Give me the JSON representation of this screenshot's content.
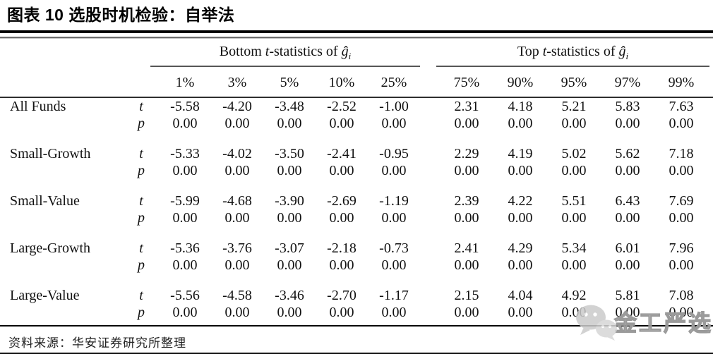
{
  "header": {
    "title_prefix": "图表 ",
    "title_number": "10",
    "title_suffix": " 选股时机检验：自举法"
  },
  "footer": {
    "source": "资料来源：华安证券研究所整理",
    "watermark_text": "金工严选"
  },
  "icons": {
    "watermark_icon": "wechat-icon"
  },
  "colors": {
    "title_bar": "#000000",
    "table_rule_dark": "#2e2e2e",
    "watermark_gray": "#9a9a9a"
  },
  "chart_data": {
    "type": "table",
    "title": "图表 10 选股时机检验：自举法",
    "group_headers": [
      {
        "label": "Bottom t-statistics of ĝi",
        "prefix": "Bottom ",
        "stat": "t",
        "mid": "-statistics of ",
        "symbol": "ĝ",
        "subscript": "i"
      },
      {
        "label": "Top t-statistics of ĝi",
        "prefix": "Top ",
        "stat": "t",
        "mid": "-statistics of ",
        "symbol": "ĝ",
        "subscript": "i"
      }
    ],
    "columns": [
      "1%",
      "3%",
      "5%",
      "10%",
      "25%",
      "75%",
      "90%",
      "95%",
      "97%",
      "99%"
    ],
    "stat_labels": [
      "t",
      "p"
    ],
    "rows": [
      {
        "name": "All Funds",
        "t": [
          "-5.58",
          "-4.20",
          "-3.48",
          "-2.52",
          "-1.00",
          "2.31",
          "4.18",
          "5.21",
          "5.83",
          "7.63"
        ],
        "p": [
          "0.00",
          "0.00",
          "0.00",
          "0.00",
          "0.00",
          "0.00",
          "0.00",
          "0.00",
          "0.00",
          "0.00"
        ]
      },
      {
        "name": "Small-Growth",
        "t": [
          "-5.33",
          "-4.02",
          "-3.50",
          "-2.41",
          "-0.95",
          "2.29",
          "4.19",
          "5.02",
          "5.62",
          "7.18"
        ],
        "p": [
          "0.00",
          "0.00",
          "0.00",
          "0.00",
          "0.00",
          "0.00",
          "0.00",
          "0.00",
          "0.00",
          "0.00"
        ]
      },
      {
        "name": "Small-Value",
        "t": [
          "-5.99",
          "-4.68",
          "-3.90",
          "-2.69",
          "-1.19",
          "2.39",
          "4.22",
          "5.51",
          "6.43",
          "7.69"
        ],
        "p": [
          "0.00",
          "0.00",
          "0.00",
          "0.00",
          "0.00",
          "0.00",
          "0.00",
          "0.00",
          "0.00",
          "0.00"
        ]
      },
      {
        "name": "Large-Growth",
        "t": [
          "-5.36",
          "-3.76",
          "-3.07",
          "-2.18",
          "-0.73",
          "2.41",
          "4.29",
          "5.34",
          "6.01",
          "7.96"
        ],
        "p": [
          "0.00",
          "0.00",
          "0.00",
          "0.00",
          "0.00",
          "0.00",
          "0.00",
          "0.00",
          "0.00",
          "0.00"
        ]
      },
      {
        "name": "Large-Value",
        "t": [
          "-5.56",
          "-4.58",
          "-3.46",
          "-2.70",
          "-1.17",
          "2.15",
          "4.04",
          "4.92",
          "5.81",
          "7.08"
        ],
        "p": [
          "0.00",
          "0.00",
          "0.00",
          "0.00",
          "0.00",
          "0.00",
          "0.00",
          "0.00",
          "0.00",
          "0.00"
        ]
      }
    ]
  }
}
